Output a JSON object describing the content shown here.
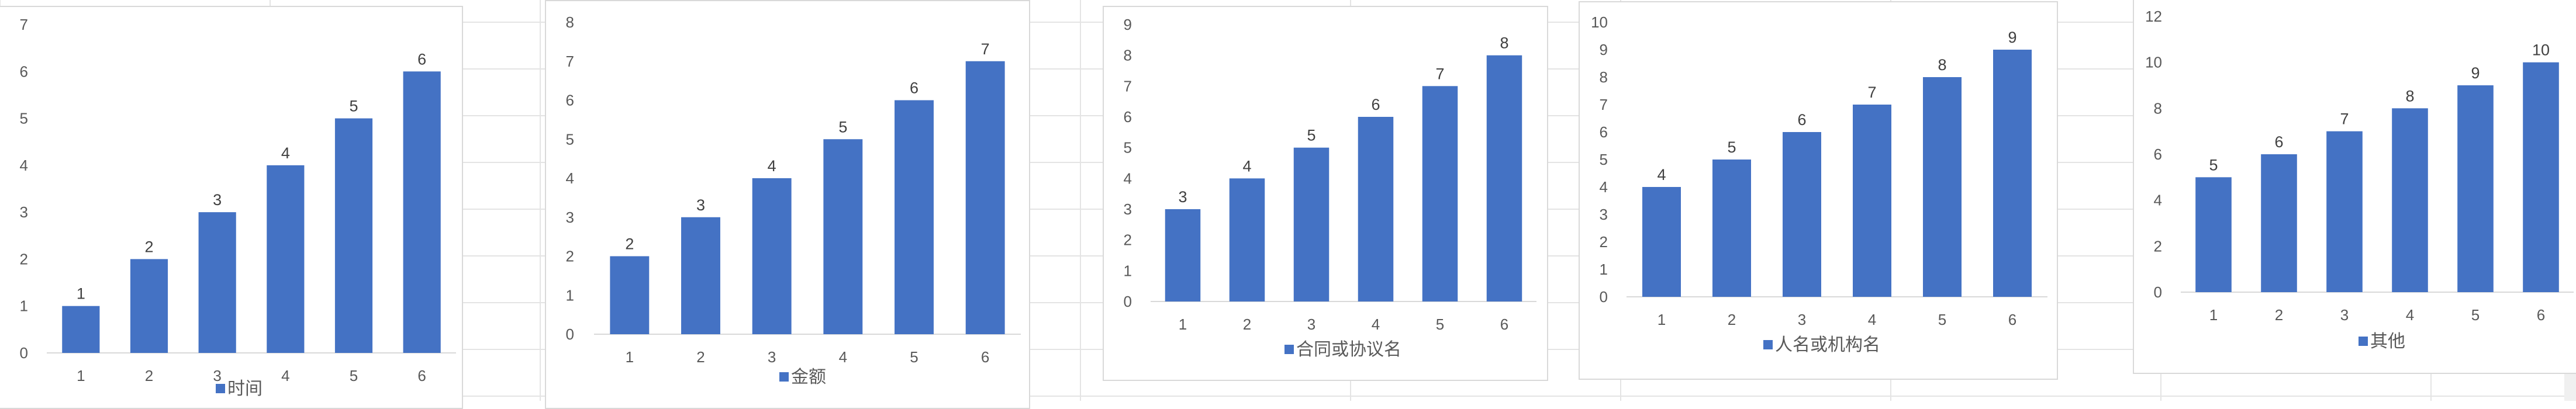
{
  "colors": {
    "bar": "#4472C4",
    "grid": "#d9d9d9",
    "sheet_grid": "#e4e4e4",
    "panel_border": "#d9d9d9"
  },
  "chart_data": [
    {
      "type": "bar",
      "categories": [
        "1",
        "2",
        "3",
        "4",
        "5",
        "6"
      ],
      "series": [
        {
          "name": "时间",
          "values": [
            1,
            2,
            3,
            4,
            5,
            6
          ]
        }
      ],
      "ylim": [
        0,
        7
      ],
      "yticks": [
        0,
        1,
        2,
        3,
        4,
        5,
        6,
        7
      ],
      "grid": false,
      "legend": "bottom"
    },
    {
      "type": "bar",
      "categories": [
        "1",
        "2",
        "3",
        "4",
        "5",
        "6"
      ],
      "series": [
        {
          "name": "金额",
          "values": [
            2,
            3,
            4,
            5,
            6,
            7
          ]
        }
      ],
      "ylim": [
        0,
        8
      ],
      "yticks": [
        0,
        1,
        2,
        3,
        4,
        5,
        6,
        7,
        8
      ],
      "grid": false,
      "legend": "bottom"
    },
    {
      "type": "bar",
      "categories": [
        "1",
        "2",
        "3",
        "4",
        "5",
        "6"
      ],
      "series": [
        {
          "name": "合同或协议名",
          "values": [
            3,
            4,
            5,
            6,
            7,
            8
          ]
        }
      ],
      "ylim": [
        0,
        9
      ],
      "yticks": [
        0,
        1,
        2,
        3,
        4,
        5,
        6,
        7,
        8,
        9
      ],
      "grid": false,
      "legend": "bottom"
    },
    {
      "type": "bar",
      "categories": [
        "1",
        "2",
        "3",
        "4",
        "5",
        "6"
      ],
      "series": [
        {
          "name": "人名或机构名",
          "values": [
            4,
            5,
            6,
            7,
            8,
            9
          ]
        }
      ],
      "ylim": [
        0,
        10
      ],
      "yticks": [
        0,
        1,
        2,
        3,
        4,
        5,
        6,
        7,
        8,
        9,
        10
      ],
      "grid": false,
      "legend": "bottom"
    },
    {
      "type": "bar",
      "categories": [
        "1",
        "2",
        "3",
        "4",
        "5",
        "6"
      ],
      "series": [
        {
          "name": "其他",
          "values": [
            5,
            6,
            7,
            8,
            9,
            10
          ]
        }
      ],
      "ylim": [
        0,
        12
      ],
      "yticks": [
        0,
        2,
        4,
        6,
        8,
        10,
        12
      ],
      "grid": false,
      "legend": "bottom"
    }
  ]
}
